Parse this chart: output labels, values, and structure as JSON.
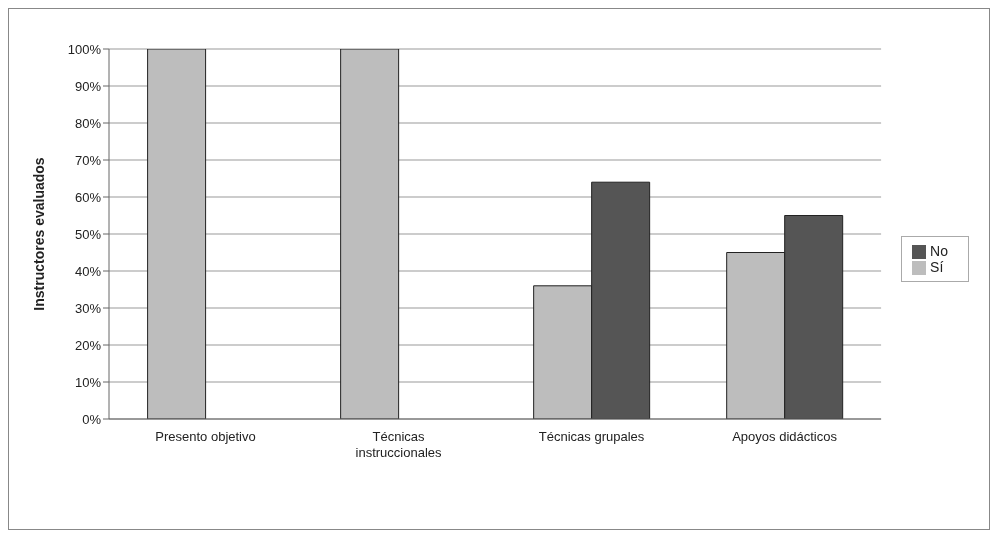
{
  "chart_data": {
    "type": "bar",
    "ylabel": "Instructores evaluados",
    "categories": [
      "Presento objetivo",
      "Técnicas instruccionales",
      "Técnicas grupales",
      "Apoyos didácticos"
    ],
    "series": [
      {
        "name": "Sí",
        "color": "#bdbdbd",
        "values": [
          100,
          100,
          36,
          45
        ]
      },
      {
        "name": "No",
        "color": "#555555",
        "values": [
          0,
          0,
          64,
          55
        ]
      }
    ],
    "ylim": [
      0,
      100
    ],
    "yticks": [
      {
        "value": 0,
        "label": "0%"
      },
      {
        "value": 10,
        "label": "10%"
      },
      {
        "value": 20,
        "label": "20%"
      },
      {
        "value": 30,
        "label": "30%"
      },
      {
        "value": 40,
        "label": "40%"
      },
      {
        "value": 50,
        "label": "50%"
      },
      {
        "value": 60,
        "label": "60%"
      },
      {
        "value": 70,
        "label": "70%"
      },
      {
        "value": 80,
        "label": "80%"
      },
      {
        "value": 90,
        "label": "90%"
      },
      {
        "value": 100,
        "label": "100%"
      }
    ],
    "grid": "y",
    "legend": "right"
  }
}
